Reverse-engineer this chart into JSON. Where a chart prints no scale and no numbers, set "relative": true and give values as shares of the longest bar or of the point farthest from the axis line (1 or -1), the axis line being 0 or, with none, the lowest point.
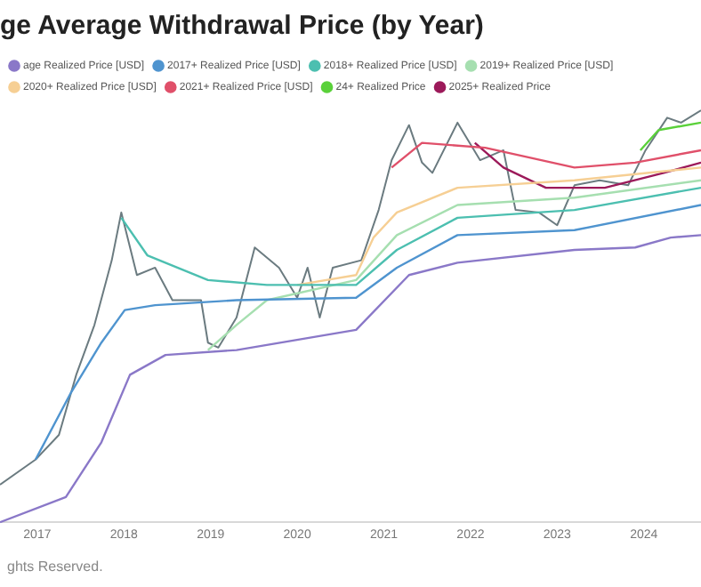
{
  "chart_data": {
    "type": "line",
    "title": "ge Average Withdrawal Price (by Year)",
    "relative": true,
    "legend": "top left",
    "xlim": [
      2016.57,
      2024.66
    ],
    "xticks": [
      2017,
      2018,
      2019,
      2020,
      2021,
      2022,
      2023,
      2024
    ],
    "annotations": [
      "ghts Reserved."
    ],
    "series": [
      {
        "name": "age Realized Price [USD]",
        "color": "#8a78c8",
        "x": [
          2016.57,
          2017.33,
          2017.74,
          2018.07,
          2018.48,
          2019.3,
          2020.68,
          2021.29,
          2021.85,
          2023.2,
          2023.9,
          2024.31,
          2024.66
        ],
        "values": [
          0,
          0.061,
          0.194,
          0.358,
          0.406,
          0.418,
          0.467,
          0.6,
          0.63,
          0.661,
          0.667,
          0.691,
          0.697
        ]
      },
      {
        "name": "2017+ Realized Price [USD]",
        "color": "#4f94cf",
        "x": [
          2016.98,
          2017.39,
          2017.74,
          2018.01,
          2018.36,
          2019.3,
          2020.68,
          2021.15,
          2021.85,
          2023.2,
          2024.66
        ],
        "values": [
          0.152,
          0.315,
          0.436,
          0.515,
          0.527,
          0.539,
          0.545,
          0.618,
          0.697,
          0.709,
          0.77
        ]
      },
      {
        "name": "2018+ Realized Price [USD]",
        "color": "#4cbfb0",
        "x": [
          2017.97,
          2018.27,
          2018.97,
          2019.65,
          2020.68,
          2021.15,
          2021.85,
          2023.2,
          2024.66
        ],
        "values": [
          0.739,
          0.648,
          0.588,
          0.576,
          0.576,
          0.661,
          0.739,
          0.758,
          0.812
        ]
      },
      {
        "name": "2019+ Realized Price [USD]",
        "color": "#a6dfb0",
        "x": [
          2018.97,
          2019.3,
          2019.65,
          2020.68,
          2021.15,
          2021.85,
          2023.2,
          2024.66
        ],
        "values": [
          0.418,
          0.479,
          0.539,
          0.588,
          0.697,
          0.77,
          0.788,
          0.83
        ]
      },
      {
        "name": "2020+ Realized Price [USD]",
        "color": "#f6cf94",
        "x": [
          2020.0,
          2020.68,
          2020.88,
          2021.15,
          2021.85,
          2023.2,
          2024.66
        ],
        "values": [
          0.576,
          0.6,
          0.691,
          0.752,
          0.812,
          0.83,
          0.861
        ]
      },
      {
        "name": "2021+ Realized Price [USD]",
        "color": "#e0506a",
        "x": [
          2021.09,
          2021.44,
          2022.17,
          2023.2,
          2023.9,
          2024.66
        ],
        "values": [
          0.861,
          0.921,
          0.909,
          0.861,
          0.873,
          0.903
        ]
      },
      {
        "name": "24+ Realized Price",
        "color": "#5ad13a",
        "x": [
          2023.96,
          2024.17,
          2024.66
        ],
        "values": [
          0.903,
          0.952,
          0.97
        ]
      },
      {
        "name": "2025+ Realized Price",
        "color": "#9c1a5a",
        "x": [
          2022.05,
          2022.38,
          2022.87,
          2023.55,
          2024.23,
          2024.66
        ],
        "values": [
          0.921,
          0.861,
          0.812,
          0.812,
          0.848,
          0.873
        ]
      },
      {
        "color": "#6b7b80",
        "x": [
          2016.57,
          2016.98,
          2017.25,
          2017.45,
          2017.66,
          2017.86,
          2017.97,
          2018.15,
          2018.36,
          2018.56,
          2018.89,
          2018.97,
          2019.09,
          2019.3,
          2019.51,
          2019.79,
          2020.0,
          2020.12,
          2020.26,
          2020.41,
          2020.74,
          2020.94,
          2021.09,
          2021.29,
          2021.44,
          2021.56,
          2021.85,
          2022.11,
          2022.38,
          2022.52,
          2022.79,
          2023.0,
          2023.2,
          2023.49,
          2023.82,
          2024.02,
          2024.27,
          2024.43,
          2024.66
        ],
        "values": [
          0.091,
          0.152,
          0.212,
          0.358,
          0.479,
          0.636,
          0.752,
          0.6,
          0.618,
          0.539,
          0.539,
          0.436,
          0.424,
          0.497,
          0.667,
          0.618,
          0.545,
          0.618,
          0.497,
          0.618,
          0.636,
          0.758,
          0.879,
          0.964,
          0.873,
          0.848,
          0.97,
          0.879,
          0.903,
          0.758,
          0.752,
          0.721,
          0.818,
          0.83,
          0.818,
          0.903,
          0.982,
          0.97,
          1
        ]
      }
    ]
  }
}
